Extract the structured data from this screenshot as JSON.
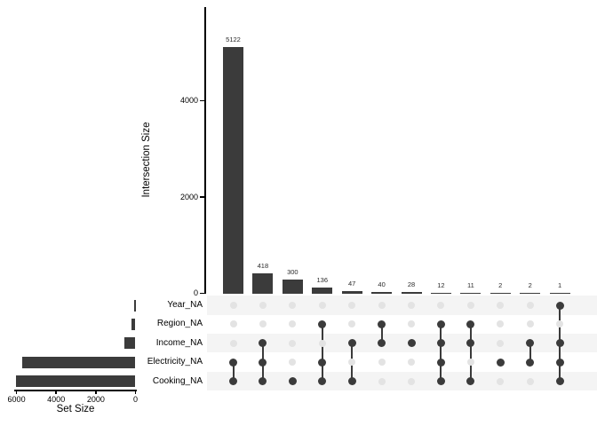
{
  "chart_data": {
    "type": "upset",
    "description": "UpSet plot of missing-value (NA) set intersections",
    "intersection_axis": {
      "title": "Intersection Size",
      "ticks": [
        0,
        2000,
        4000
      ],
      "range": [
        0,
        5500
      ],
      "grid": false
    },
    "set_axis": {
      "title": "Set Size",
      "ticks": [
        6000,
        4000,
        2000,
        0
      ],
      "range": [
        6047,
        0
      ],
      "grid": false
    },
    "sets": [
      {
        "name": "Year_NA",
        "size": 1
      },
      {
        "name": "Region_NA",
        "size": 199
      },
      {
        "name": "Income_NA",
        "size": 559
      },
      {
        "name": "Electricity_NA",
        "size": 5693
      },
      {
        "name": "Cooking_NA",
        "size": 6047
      }
    ],
    "intersections": [
      {
        "value": 5122,
        "sets": [
          "Electricity_NA",
          "Cooking_NA"
        ]
      },
      {
        "value": 418,
        "sets": [
          "Income_NA",
          "Electricity_NA",
          "Cooking_NA"
        ]
      },
      {
        "value": 300,
        "sets": [
          "Cooking_NA"
        ]
      },
      {
        "value": 136,
        "sets": [
          "Region_NA",
          "Electricity_NA",
          "Cooking_NA"
        ]
      },
      {
        "value": 47,
        "sets": [
          "Income_NA",
          "Cooking_NA"
        ]
      },
      {
        "value": 40,
        "sets": [
          "Region_NA",
          "Income_NA"
        ]
      },
      {
        "value": 28,
        "sets": [
          "Income_NA"
        ]
      },
      {
        "value": 12,
        "sets": [
          "Region_NA",
          "Income_NA",
          "Electricity_NA",
          "Cooking_NA"
        ]
      },
      {
        "value": 11,
        "sets": [
          "Region_NA",
          "Income_NA",
          "Cooking_NA"
        ]
      },
      {
        "value": 2,
        "sets": [
          "Electricity_NA"
        ]
      },
      {
        "value": 2,
        "sets": [
          "Income_NA",
          "Electricity_NA"
        ]
      },
      {
        "value": 1,
        "sets": [
          "Year_NA",
          "Income_NA",
          "Electricity_NA",
          "Cooking_NA"
        ]
      }
    ],
    "colors": {
      "bar": "#3b3b3b",
      "dot_active": "#3b3b3b",
      "dot_inactive": "#e3e3e3",
      "stripe": "#f4f4f4",
      "background": "#ffffff",
      "text": "#000000"
    }
  }
}
